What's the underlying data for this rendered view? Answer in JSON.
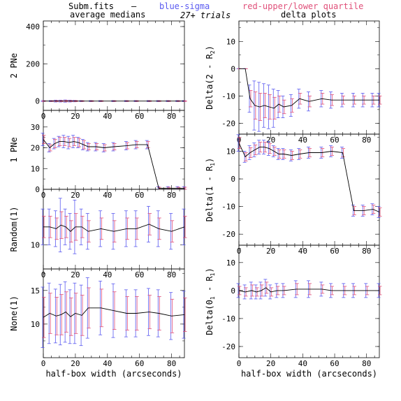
{
  "header": {
    "prefix": "Subm.fits",
    "dash": "—",
    "blue_text": "blue-sigma",
    "red_text": "red-upper/lower quartile",
    "left_title": "average medians",
    "center_text": "27+ trials",
    "right_title": "delta plots"
  },
  "colors": {
    "line": "#000000",
    "sigma": "#5a5af0",
    "quartile": "#e0507a",
    "text": "#000000"
  },
  "chart_data": [
    {
      "type": "line",
      "column": "left",
      "row": 0,
      "ylabel": "2 PNe",
      "xlabel": "",
      "xlim": [
        0,
        88
      ],
      "ylim": [
        -50,
        430
      ],
      "xticks": [
        0,
        20,
        40,
        60,
        80
      ],
      "yticks": [
        0,
        200,
        400
      ],
      "x": [
        0,
        5,
        8,
        11,
        14,
        17,
        20,
        24,
        30,
        36,
        44,
        52,
        58,
        66,
        72,
        78,
        84,
        88
      ],
      "median": [
        0,
        0,
        0,
        0,
        0,
        0,
        0,
        0,
        0,
        0,
        0,
        0,
        0,
        0,
        0,
        0,
        0,
        0
      ],
      "sigma": [
        3,
        3,
        5,
        5,
        6,
        5,
        4,
        3,
        3,
        3,
        3,
        3,
        3,
        3,
        3,
        3,
        3,
        3
      ],
      "quartile": [
        2,
        2,
        3,
        3,
        4,
        3,
        3,
        2,
        2,
        2,
        2,
        2,
        2,
        2,
        2,
        2,
        2,
        2
      ]
    },
    {
      "type": "line",
      "column": "left",
      "row": 1,
      "ylabel": "1 PNe",
      "xlabel": "",
      "xlim": [
        0,
        88
      ],
      "ylim": [
        0,
        38
      ],
      "xticks": [
        0,
        20,
        40,
        60,
        80
      ],
      "yticks": [
        0,
        10,
        20,
        30
      ],
      "x": [
        0,
        4,
        7,
        10,
        13,
        16,
        19,
        22,
        25,
        28,
        33,
        38,
        44,
        52,
        58,
        65,
        72,
        78,
        84,
        88
      ],
      "median": [
        24,
        20,
        22,
        23,
        23,
        22.5,
        23,
        22.5,
        21.5,
        20.5,
        20.5,
        20,
        20.5,
        21,
        21.5,
        21.5,
        0.5,
        0.5,
        0.5,
        0.5
      ],
      "sigma": [
        3,
        2,
        2.5,
        2.5,
        3,
        3,
        3,
        2.5,
        2.5,
        2,
        2,
        2,
        2,
        2,
        2,
        2,
        0.8,
        0.8,
        0.8,
        0.8
      ],
      "quartile": [
        2,
        1.5,
        2,
        2,
        2,
        2,
        2,
        2,
        2,
        1.5,
        1.5,
        1.5,
        1.5,
        1.5,
        1.5,
        1.5,
        0.5,
        0.5,
        0.5,
        0.5
      ]
    },
    {
      "type": "line",
      "column": "left",
      "row": 2,
      "ylabel": "Random(1)",
      "xlabel": "",
      "xlim": [
        0,
        88
      ],
      "ylim": [
        7.3,
        16.2
      ],
      "xticks": [
        0,
        20,
        40,
        60,
        80
      ],
      "yticks": [
        10
      ],
      "x": [
        0,
        4,
        8,
        11,
        14,
        17,
        20,
        24,
        28,
        36,
        44,
        52,
        58,
        66,
        72,
        80,
        88
      ],
      "median": [
        12,
        12,
        11.8,
        12.2,
        12,
        11.5,
        12,
        12,
        11.5,
        11.8,
        11.5,
        11.8,
        11.8,
        12.3,
        11.8,
        11.5,
        12
      ],
      "sigma": [
        2,
        2,
        2,
        3,
        2,
        2,
        3,
        2,
        2,
        2,
        2,
        2,
        2,
        2,
        2,
        2,
        2
      ],
      "quartile": [
        1.2,
        1.2,
        1.2,
        1.5,
        1.2,
        1.2,
        1.5,
        1.2,
        1.2,
        1.2,
        1.2,
        1.2,
        1.2,
        1.2,
        1.2,
        1.2,
        1.2
      ]
    },
    {
      "type": "line",
      "column": "left",
      "row": 3,
      "ylabel": "None(1)",
      "xlabel": "half-box width (arcseconds)",
      "xlim": [
        0,
        88
      ],
      "ylim": [
        5,
        18.2
      ],
      "xticks": [
        0,
        20,
        40,
        60,
        80
      ],
      "yticks": [
        10,
        15
      ],
      "x": [
        0,
        4,
        8,
        11,
        14,
        17,
        20,
        24,
        28,
        36,
        44,
        52,
        58,
        66,
        72,
        80,
        88
      ],
      "median": [
        11,
        11.6,
        11.2,
        11.4,
        11.8,
        11.1,
        11.6,
        11.3,
        12.4,
        12.4,
        12,
        11.6,
        11.6,
        11.8,
        11.6,
        11.2,
        11.4
      ],
      "sigma": [
        4.5,
        4.5,
        4,
        4.5,
        4.5,
        4,
        4.5,
        4.5,
        4.5,
        4,
        4,
        3.5,
        3.5,
        3.5,
        3.5,
        3.5,
        3.5
      ],
      "quartile": [
        3,
        3,
        2.8,
        3,
        3,
        2.8,
        3,
        3,
        3,
        2.8,
        2.8,
        2.5,
        2.5,
        2.5,
        2.5,
        2.5,
        2.5
      ]
    },
    {
      "type": "line",
      "column": "right",
      "row": 0,
      "ylabel": "Delta(2 - R",
      "ylabel_sub": "2",
      "ylabel_end": ")",
      "xlabel": "",
      "xlim": [
        0,
        88
      ],
      "ylim": [
        -24,
        17.5
      ],
      "xticks": [
        0,
        20,
        40,
        60,
        80
      ],
      "yticks": [
        -20,
        -10,
        0,
        10
      ],
      "x": [
        0,
        4,
        7,
        10,
        13,
        16,
        19,
        22,
        25,
        28,
        33,
        38,
        44,
        52,
        58,
        65,
        72,
        78,
        84,
        88
      ],
      "median": [
        0,
        0,
        -11,
        -13.5,
        -14,
        -13.5,
        -14,
        -14.5,
        -13,
        -14,
        -13.5,
        -11,
        -12,
        -11,
        -11.5,
        -11.5,
        -11.5,
        -11.5,
        -11.5,
        -11.5
      ],
      "sigma": [
        0,
        0,
        5,
        9,
        9,
        8,
        8,
        7,
        5,
        4,
        4,
        3.5,
        3.5,
        3,
        3,
        2.5,
        2.5,
        2.5,
        2.5,
        2.5
      ],
      "quartile": [
        0,
        0,
        3,
        5,
        5,
        4.5,
        4.5,
        4,
        3,
        2.5,
        2.5,
        2,
        2,
        2,
        2,
        1.5,
        1.5,
        1.5,
        1.5,
        1.5
      ]
    },
    {
      "type": "line",
      "column": "right",
      "row": 1,
      "ylabel": "Delta(1 - R",
      "ylabel_sub": "1",
      "ylabel_end": ")",
      "xlabel": "",
      "xlim": [
        0,
        88
      ],
      "ylim": [
        -24,
        16.2
      ],
      "xticks": [
        0,
        20,
        40,
        60,
        80
      ],
      "yticks": [
        -20,
        -10,
        0,
        10
      ],
      "x": [
        0,
        4,
        7,
        10,
        13,
        16,
        19,
        22,
        25,
        28,
        33,
        38,
        44,
        52,
        58,
        65,
        72,
        78,
        84,
        88
      ],
      "median": [
        13,
        8,
        9.5,
        10.5,
        11.5,
        11.5,
        11,
        10,
        9,
        9,
        8.5,
        9,
        9.5,
        9.5,
        10,
        9.5,
        -11.5,
        -11.5,
        -11,
        -12
      ],
      "sigma": [
        3,
        2,
        2.5,
        2.5,
        2.5,
        2.5,
        2.5,
        2,
        2,
        2,
        2,
        2,
        2,
        2,
        2,
        2,
        2,
        2,
        2,
        2
      ],
      "quartile": [
        2,
        1.5,
        1.8,
        1.8,
        1.8,
        1.8,
        1.8,
        1.5,
        1.5,
        1.5,
        1.5,
        1.5,
        1.5,
        1.5,
        1.5,
        1.5,
        1.5,
        1.5,
        1.5,
        1.5
      ]
    },
    {
      "type": "line",
      "column": "right",
      "row": 2,
      "ylabel": "Delta(0",
      "ylabel_sub": "1",
      "ylabel_end": " - R",
      "ylabel_sub2": "1",
      "ylabel_end2": ")",
      "xlabel": "half-box width (arcseconds)",
      "xlim": [
        0,
        88
      ],
      "ylim": [
        -24,
        16.2
      ],
      "xticks": [
        0,
        20,
        40,
        60,
        80
      ],
      "yticks": [
        -20,
        -10,
        0,
        10
      ],
      "x": [
        0,
        4,
        8,
        11,
        14,
        17,
        20,
        24,
        28,
        36,
        44,
        52,
        58,
        66,
        72,
        80,
        88
      ],
      "median": [
        0,
        -0.5,
        0,
        -0.5,
        0,
        1,
        -0.5,
        0,
        0,
        0.5,
        0.5,
        0.5,
        0,
        0,
        0,
        0,
        0
      ],
      "sigma": [
        2.5,
        2.5,
        3,
        2.5,
        3,
        3,
        2.5,
        2.5,
        2.5,
        3,
        3,
        2.5,
        2.5,
        2.5,
        2.5,
        2.5,
        2.5
      ],
      "quartile": [
        1.5,
        1.5,
        2,
        1.5,
        2,
        2,
        1.5,
        1.5,
        1.5,
        2,
        2,
        1.5,
        1.5,
        1.5,
        1.5,
        1.5,
        1.5
      ]
    }
  ]
}
